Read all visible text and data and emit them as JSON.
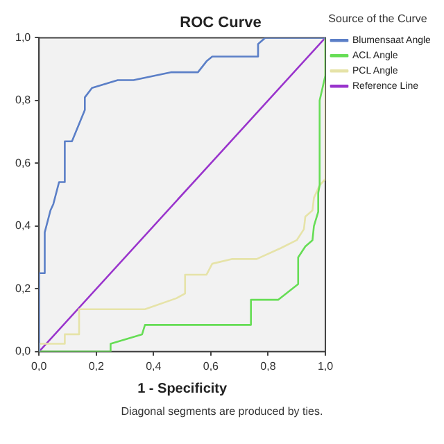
{
  "chart_data": {
    "type": "line",
    "title": "ROC Curve",
    "xlabel": "1 - Specificity",
    "legend_title": "Source of the Curve",
    "legend": "right",
    "grid": false,
    "marker": "none",
    "line_style": "solid",
    "xlim": [
      0,
      1
    ],
    "ylim": [
      0,
      1
    ],
    "xticks": [
      {
        "value": 0,
        "label": "0,0"
      },
      {
        "value": 0.2,
        "label": "0,2"
      },
      {
        "value": 0.4,
        "label": "0,4"
      },
      {
        "value": 0.6,
        "label": "0,6"
      },
      {
        "value": 0.8,
        "label": "0,8"
      },
      {
        "value": 1,
        "label": "1,0"
      }
    ],
    "yticks": [
      {
        "value": 0,
        "label": "0,0"
      },
      {
        "value": 0.2,
        "label": "0,2"
      },
      {
        "value": 0.4,
        "label": "0,4"
      },
      {
        "value": 0.6,
        "label": "0,6"
      },
      {
        "value": 0.8,
        "label": "0,8"
      },
      {
        "value": 1,
        "label": "1,0"
      }
    ],
    "annotations": [
      "Diagonal segments are produced by ties."
    ],
    "series": [
      {
        "name": "Blumensaat Angle",
        "color": "#5b7fc7",
        "x": [
          0,
          0,
          0.02,
          0.02,
          0.04,
          0.05,
          0.07,
          0.09,
          0.09,
          0.115,
          0.16,
          0.16,
          0.185,
          0.275,
          0.33,
          0.46,
          0.555,
          0.585,
          0.605,
          0.765,
          0.765,
          0.79,
          1
        ],
        "values": [
          0,
          0.25,
          0.25,
          0.38,
          0.45,
          0.47,
          0.54,
          0.54,
          0.67,
          0.67,
          0.77,
          0.81,
          0.84,
          0.865,
          0.865,
          0.89,
          0.89,
          0.925,
          0.94,
          0.94,
          0.98,
          1,
          1
        ]
      },
      {
        "name": "ACL Angle",
        "color": "#66dd55",
        "x": [
          0,
          0.25,
          0.25,
          0.36,
          0.37,
          0.74,
          0.74,
          0.835,
          0.905,
          0.905,
          0.93,
          0.955,
          0.96,
          0.975,
          0.975,
          0.98,
          0.98,
          1,
          1
        ],
        "values": [
          0,
          0,
          0.025,
          0.055,
          0.085,
          0.085,
          0.165,
          0.165,
          0.215,
          0.3,
          0.335,
          0.355,
          0.4,
          0.445,
          0.505,
          0.53,
          0.8,
          0.88,
          1
        ]
      },
      {
        "name": "PCL Angle",
        "color": "#e6e3a8",
        "x": [
          0,
          0,
          0.09,
          0.09,
          0.14,
          0.14,
          0.37,
          0.48,
          0.51,
          0.51,
          0.585,
          0.605,
          0.675,
          0.76,
          0.845,
          0.9,
          0.925,
          0.93,
          0.955,
          0.96,
          0.98,
          1,
          1
        ],
        "values": [
          0,
          0.025,
          0.025,
          0.055,
          0.055,
          0.135,
          0.135,
          0.17,
          0.185,
          0.245,
          0.245,
          0.28,
          0.295,
          0.295,
          0.33,
          0.355,
          0.39,
          0.43,
          0.45,
          0.49,
          0.53,
          0.55,
          1
        ]
      },
      {
        "name": "Reference Line",
        "color": "#9933cc",
        "x": [
          0,
          1
        ],
        "values": [
          0,
          1
        ]
      }
    ]
  }
}
